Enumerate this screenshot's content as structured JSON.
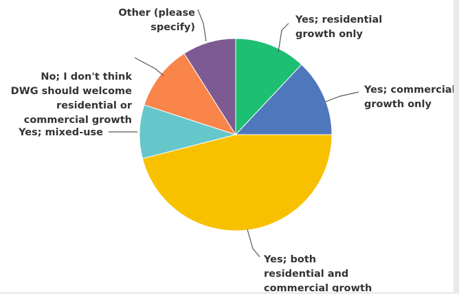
{
  "chart_data": {
    "type": "pie",
    "title": "",
    "slices": [
      {
        "label_lines": [
          "Yes; residential",
          "growth only"
        ],
        "value": 12.0,
        "color": "#1dbf73"
      },
      {
        "label_lines": [
          "Yes; commercial",
          "growth only"
        ],
        "value": 13.0,
        "color": "#4f78bc"
      },
      {
        "label_lines": [
          "Yes; both",
          "residential and",
          "commercial growth"
        ],
        "value": 46.0,
        "color": "#f8c100"
      },
      {
        "label_lines": [
          "Yes; mixed-use"
        ],
        "value": 9.0,
        "color": "#66c7cb"
      },
      {
        "label_lines": [
          "No; I don't think",
          "DWG should welcome",
          "residential or",
          "commercial growth"
        ],
        "value": 11.0,
        "color": "#f9854a"
      },
      {
        "label_lines": [
          "Other (please",
          "specify)"
        ],
        "value": 9.0,
        "color": "#7d5a92"
      }
    ]
  }
}
